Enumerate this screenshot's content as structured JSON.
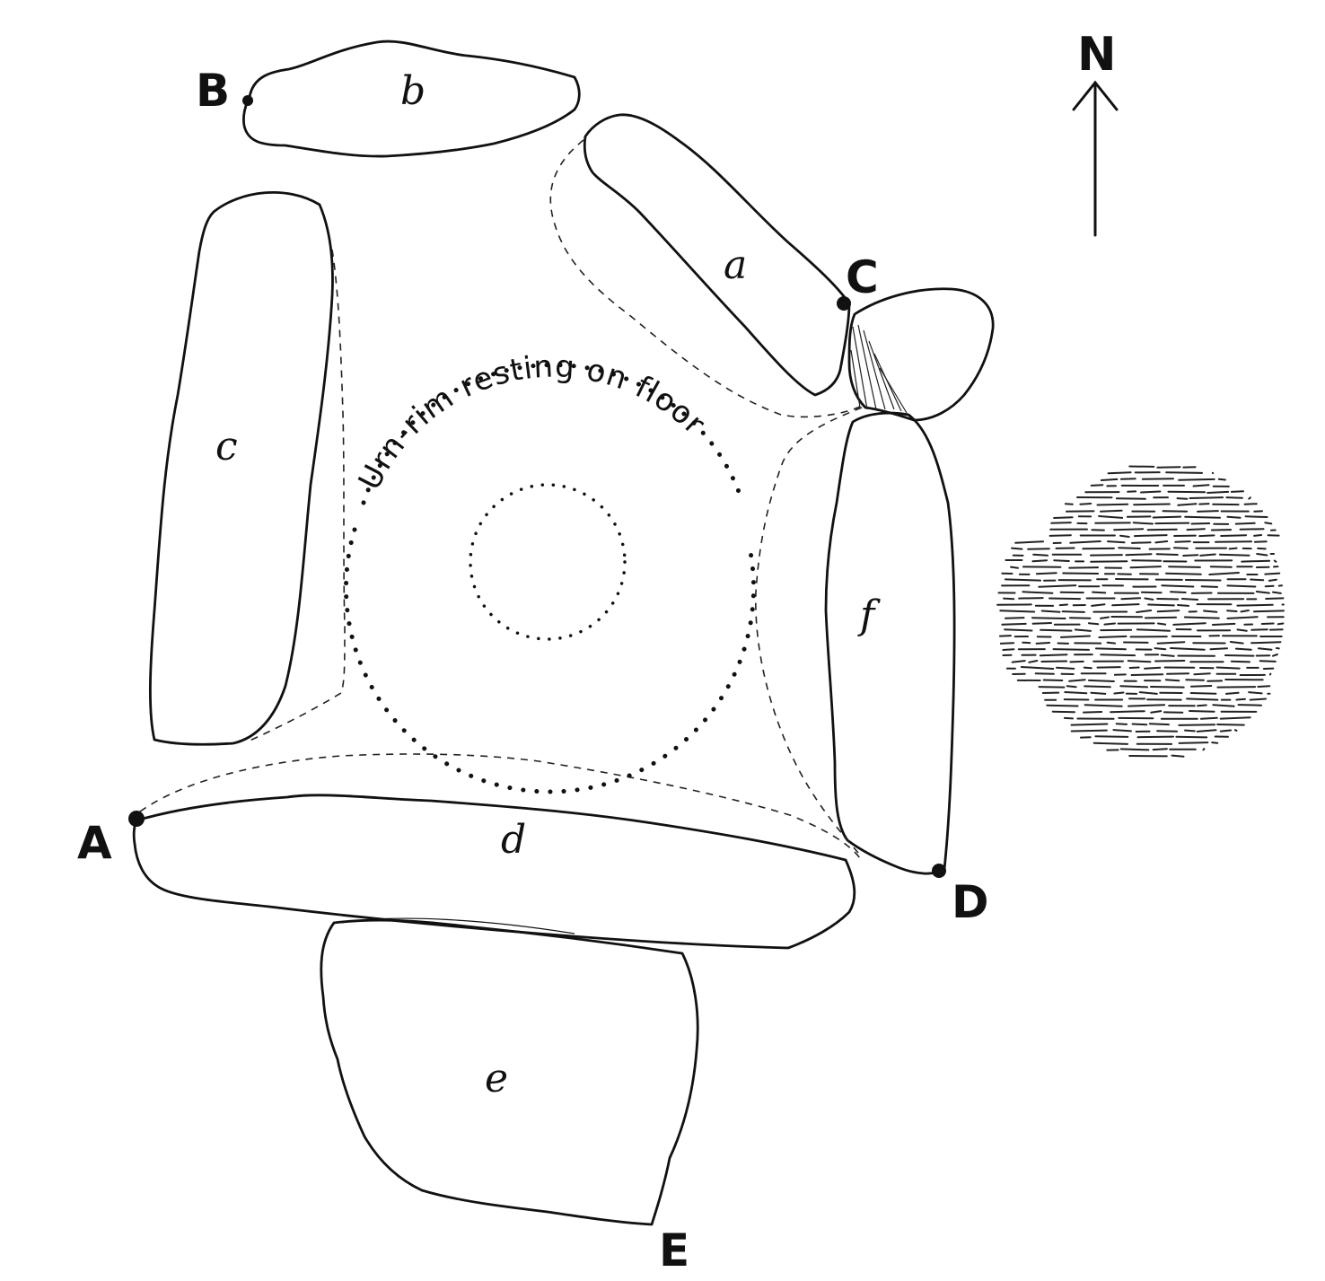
{
  "stones": [
    {
      "id": "a",
      "label": "a"
    },
    {
      "id": "b",
      "label": "b"
    },
    {
      "id": "c",
      "label": "c"
    },
    {
      "id": "d",
      "label": "d"
    },
    {
      "id": "e",
      "label": "e"
    },
    {
      "id": "f",
      "label": "f"
    }
  ],
  "points": [
    {
      "id": "A",
      "label": "A"
    },
    {
      "id": "B",
      "label": "B"
    },
    {
      "id": "C",
      "label": "C"
    },
    {
      "id": "D",
      "label": "D"
    },
    {
      "id": "E",
      "label": "E"
    }
  ],
  "urn_rim_label": "Urn-rim resting on floor",
  "north": {
    "label": "N",
    "icon": "north-arrow-icon"
  }
}
